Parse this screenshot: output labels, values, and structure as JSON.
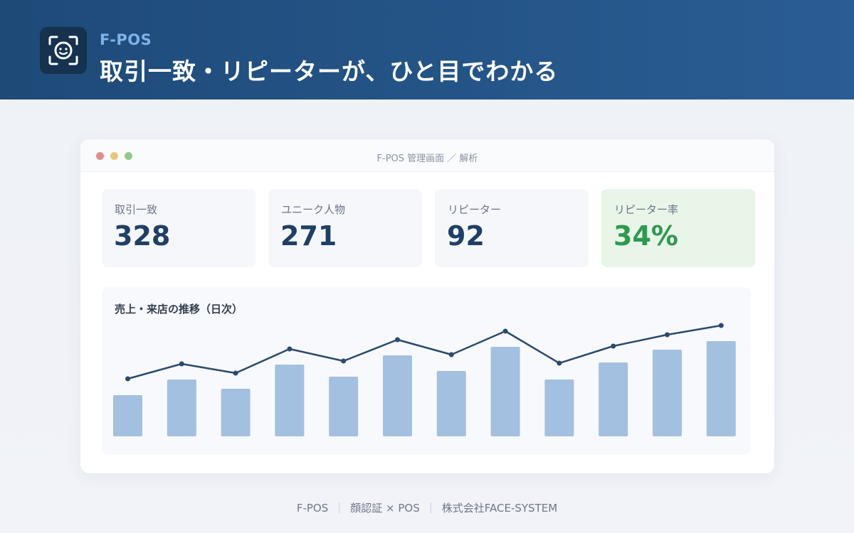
{
  "header": {
    "brand": "F-POS",
    "headline": "取引一致・リピーターが、ひと目でわかる",
    "logo_icon": "face-scan-icon"
  },
  "window": {
    "title": "F-POS 管理画面 ／ 解析"
  },
  "kpis": [
    {
      "label": "取引一致",
      "value": "328"
    },
    {
      "label": "ユニーク人物",
      "value": "271"
    },
    {
      "label": "リピーター",
      "value": "92"
    },
    {
      "label": "リピーター率",
      "value": "34%"
    }
  ],
  "chart": {
    "title": "売上・来店の推移（日次）"
  },
  "chart_data": {
    "type": "bar",
    "title": "売上・来店の推移（日次）",
    "bar_color": "#a3c0e0",
    "line_color": "#2a4a6e",
    "series": [
      {
        "type": "bar",
        "values": [
          58,
          80,
          67,
          101,
          84,
          114,
          92,
          126,
          80,
          104,
          122,
          134
        ]
      },
      {
        "type": "line",
        "values": [
          81,
          102,
          89,
          123,
          106,
          136,
          115,
          148,
          103,
          127,
          143,
          156
        ]
      }
    ],
    "ylim": [
      0,
      170
    ]
  },
  "footer": {
    "part1": "F-POS",
    "part2": "顔認証 × POS",
    "part3": "株式会社FACE-SYSTEM",
    "separator": "｜"
  }
}
